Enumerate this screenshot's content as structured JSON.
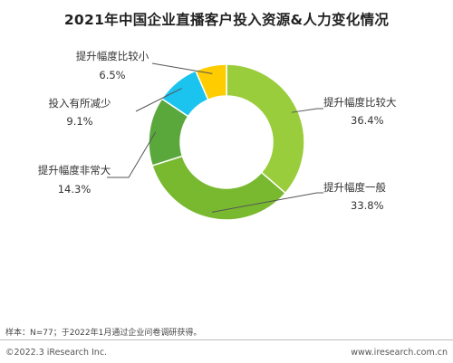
{
  "chart_data": {
    "type": "pie",
    "title": "2021年中国企业直播客户投入资源&人力变化情况",
    "categories": [
      "提升幅度比较大",
      "提升幅度一般",
      "提升幅度非常大",
      "投入有所减少",
      "提升幅度比较小"
    ],
    "values": [
      36.4,
      33.8,
      14.3,
      9.1,
      6.5
    ],
    "value_labels": [
      "36.4%",
      "33.8%",
      "14.3%",
      "9.1%",
      "6.5%"
    ],
    "colors": [
      "#9ACD3C",
      "#79B930",
      "#5AA83C",
      "#1BC4EE",
      "#FFCC00"
    ],
    "donut": true,
    "legend": "none"
  },
  "note": "样本：N=77；于2022年1月通过企业问卷调研获得。",
  "footer": {
    "copyright": "©2022.3 iResearch Inc.",
    "website": "www.iresearch.com.cn"
  }
}
